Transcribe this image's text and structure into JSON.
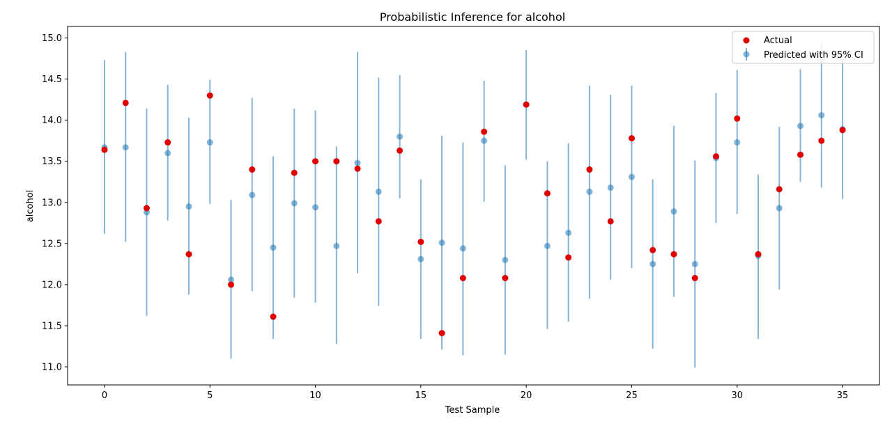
{
  "chart_data": {
    "type": "scatter",
    "title": "Probabilistic Inference for alcohol",
    "xlabel": "Test Sample",
    "ylabel": "alcohol",
    "xlim": [
      -1.75,
      36.75
    ],
    "ylim": [
      10.78,
      15.14
    ],
    "xticks": [
      0,
      5,
      10,
      15,
      20,
      25,
      30,
      35
    ],
    "xtick_labels": [
      "0",
      "5",
      "10",
      "15",
      "20",
      "25",
      "30",
      "35"
    ],
    "yticks": [
      11.0,
      11.5,
      12.0,
      12.5,
      13.0,
      13.5,
      14.0,
      14.5,
      15.0
    ],
    "ytick_labels": [
      "11.0",
      "11.5",
      "12.0",
      "12.5",
      "13.0",
      "13.5",
      "14.0",
      "14.5",
      "15.0"
    ],
    "grid": false,
    "legend_position": "top-right",
    "colors": {
      "actual": "#e00000",
      "predicted": "#1f77b4"
    },
    "series": [
      {
        "name": "Actual",
        "kind": "scatter",
        "x": [
          0,
          1,
          2,
          3,
          4,
          5,
          6,
          7,
          8,
          9,
          10,
          11,
          12,
          13,
          14,
          15,
          16,
          17,
          18,
          19,
          20,
          21,
          22,
          23,
          24,
          25,
          26,
          27,
          28,
          29,
          30,
          31,
          32,
          33,
          34,
          35
        ],
        "values": [
          13.64,
          14.21,
          12.93,
          13.73,
          12.37,
          14.3,
          12.0,
          13.4,
          11.61,
          13.36,
          13.5,
          13.5,
          13.41,
          12.77,
          13.63,
          12.52,
          11.41,
          12.08,
          13.86,
          12.08,
          14.19,
          13.11,
          12.33,
          13.4,
          12.77,
          13.78,
          12.42,
          12.37,
          12.08,
          13.56,
          14.02,
          12.37,
          13.16,
          13.58,
          13.75,
          13.88
        ]
      },
      {
        "name": "Predicted with 95% CI",
        "kind": "errorbar",
        "x": [
          0,
          1,
          2,
          3,
          4,
          5,
          6,
          7,
          8,
          9,
          10,
          11,
          12,
          13,
          14,
          15,
          16,
          17,
          18,
          19,
          20,
          21,
          22,
          23,
          24,
          25,
          26,
          27,
          28,
          29,
          30,
          31,
          32,
          33,
          34,
          35
        ],
        "values": [
          13.67,
          13.67,
          12.88,
          13.6,
          12.95,
          13.73,
          12.06,
          13.09,
          12.45,
          12.99,
          12.94,
          12.47,
          13.48,
          13.13,
          13.8,
          12.31,
          12.51,
          12.44,
          13.75,
          12.3,
          14.19,
          12.47,
          12.63,
          13.13,
          13.18,
          13.31,
          12.25,
          12.89,
          12.25,
          13.54,
          13.73,
          12.35,
          12.93,
          13.93,
          14.06,
          13.89
        ],
        "lower": [
          12.62,
          12.52,
          11.62,
          12.78,
          11.88,
          12.98,
          11.1,
          11.92,
          11.34,
          11.84,
          11.78,
          11.28,
          12.14,
          11.74,
          13.05,
          11.34,
          11.21,
          11.14,
          13.01,
          11.15,
          13.52,
          11.46,
          11.55,
          11.83,
          12.06,
          12.2,
          11.22,
          11.85,
          10.99,
          12.75,
          12.86,
          11.34,
          11.94,
          13.25,
          13.18,
          13.04
        ],
        "upper": [
          14.73,
          14.83,
          14.14,
          14.43,
          14.03,
          14.49,
          13.03,
          14.27,
          13.56,
          14.14,
          14.12,
          13.68,
          14.83,
          14.52,
          14.55,
          13.28,
          13.81,
          13.73,
          14.48,
          13.45,
          14.85,
          13.5,
          13.72,
          14.42,
          14.31,
          14.42,
          13.28,
          13.93,
          13.51,
          14.33,
          14.61,
          13.34,
          13.92,
          14.62,
          14.94,
          14.74
        ]
      }
    ]
  }
}
